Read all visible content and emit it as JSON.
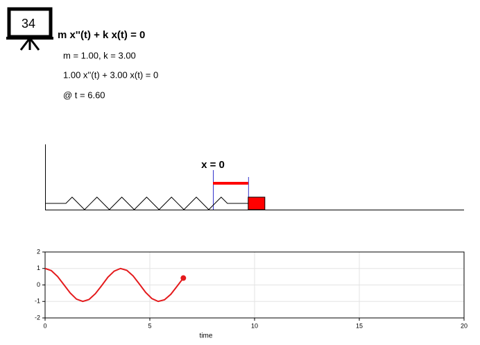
{
  "badge": "34",
  "equation": "m x''(t) + k x(t) = 0",
  "params": "m = 1.00, k = 3.00",
  "instance": "1.00 x''(t) + 3.00 x(t) = 0",
  "time": "@ t = 6.60",
  "marker_label": "x = 0",
  "chart_data": {
    "type": "line",
    "xlabel": "time",
    "x": [
      0,
      0.3,
      0.6,
      0.9,
      1.2,
      1.5,
      1.8,
      2.1,
      2.4,
      2.7,
      3.0,
      3.3,
      3.6,
      3.9,
      4.2,
      4.5,
      4.8,
      5.1,
      5.4,
      5.7,
      6.0,
      6.3,
      6.6
    ],
    "values": [
      1,
      0.87,
      0.51,
      0.01,
      -0.49,
      -0.86,
      -1,
      -0.88,
      -0.53,
      -0.04,
      0.47,
      0.84,
      1,
      0.89,
      0.55,
      0.06,
      -0.45,
      -0.83,
      -1,
      -0.9,
      -0.57,
      -0.08,
      0.42
    ],
    "color": "#e41a1c",
    "xlim": [
      0,
      20
    ],
    "ylim": [
      -2,
      2
    ],
    "xticks": [
      0,
      5,
      10,
      15,
      20
    ],
    "yticks": [
      -2,
      -1,
      0,
      1,
      2
    ],
    "grid": true
  }
}
